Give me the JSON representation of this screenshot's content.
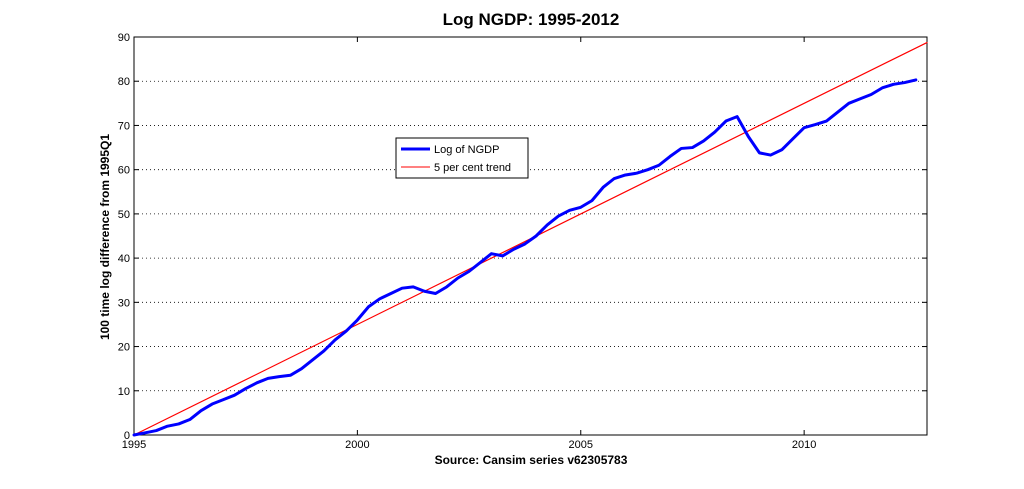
{
  "chart_data": {
    "type": "line",
    "title": "Log NGDP: 1995-2012",
    "xlabel": "Source: Cansim series v62305783",
    "ylabel": "100 time log difference from 1995Q1",
    "xlim": [
      1995,
      2012.75
    ],
    "ylim": [
      0,
      90
    ],
    "xticks": [
      1995,
      2000,
      2005,
      2010
    ],
    "yticks": [
      0,
      10,
      20,
      30,
      40,
      50,
      60,
      70,
      80,
      90
    ],
    "grid": "y-dotted",
    "legend_position": "center-left",
    "series": [
      {
        "name": "Log of NGDP",
        "color": "#0000ff",
        "x": [
          1995.0,
          1995.25,
          1995.5,
          1995.75,
          1996.0,
          1996.25,
          1996.5,
          1996.75,
          1997.0,
          1997.25,
          1997.5,
          1997.75,
          1998.0,
          1998.25,
          1998.5,
          1998.75,
          1999.0,
          1999.25,
          1999.5,
          1999.75,
          2000.0,
          2000.25,
          2000.5,
          2000.75,
          2001.0,
          2001.25,
          2001.5,
          2001.75,
          2002.0,
          2002.25,
          2002.5,
          2002.75,
          2003.0,
          2003.25,
          2003.5,
          2003.75,
          2004.0,
          2004.25,
          2004.5,
          2004.75,
          2005.0,
          2005.25,
          2005.5,
          2005.75,
          2006.0,
          2006.25,
          2006.5,
          2006.75,
          2007.0,
          2007.25,
          2007.5,
          2007.75,
          2008.0,
          2008.25,
          2008.5,
          2008.75,
          2009.0,
          2009.25,
          2009.5,
          2009.75,
          2010.0,
          2010.25,
          2010.5,
          2010.75,
          2011.0,
          2011.25,
          2011.5,
          2011.75,
          2012.0,
          2012.25,
          2012.5
        ],
        "values": [
          0,
          0.5,
          1.0,
          2.0,
          2.5,
          3.5,
          5.5,
          7.0,
          8.0,
          9.0,
          10.5,
          11.8,
          12.8,
          13.2,
          13.5,
          15.0,
          17.0,
          19.0,
          21.5,
          23.5,
          26.0,
          29.0,
          30.8,
          32.0,
          33.2,
          33.5,
          32.5,
          32.0,
          33.5,
          35.5,
          37.0,
          39.0,
          41.0,
          40.5,
          42.0,
          43.2,
          45.0,
          47.5,
          49.5,
          50.8,
          51.5,
          53.0,
          56.0,
          58.0,
          58.8,
          59.2,
          60.0,
          61.0,
          63.0,
          64.8,
          65.0,
          66.5,
          68.5,
          71.0,
          72.0,
          67.5,
          63.8,
          63.3,
          64.5,
          67.0,
          69.5,
          70.2,
          71.0,
          73.0,
          75.0,
          76.0,
          77.0,
          78.5,
          79.3,
          79.7,
          80.3
        ]
      },
      {
        "name": "5 per cent trend",
        "color": "#ff0000",
        "x": [
          1995,
          2012.75
        ],
        "values": [
          0,
          88.75
        ]
      }
    ]
  }
}
